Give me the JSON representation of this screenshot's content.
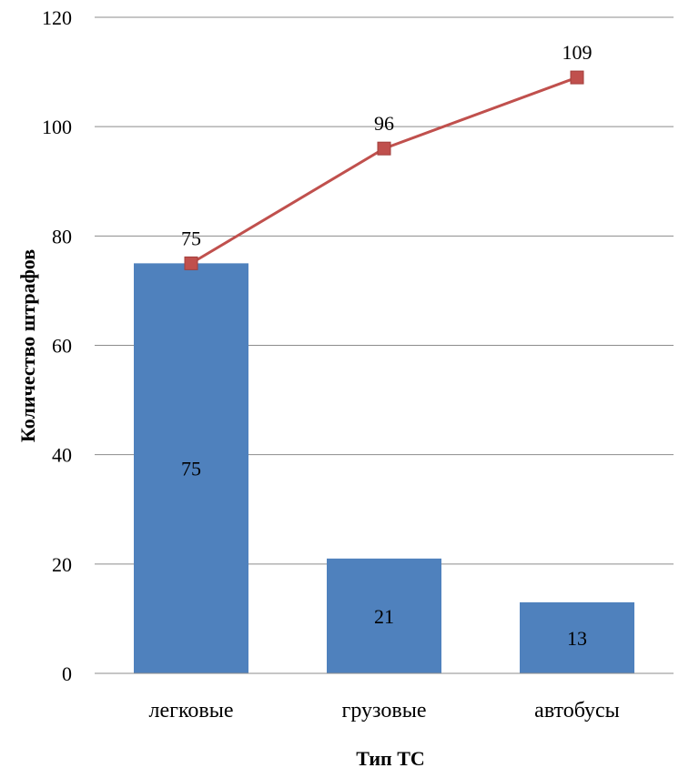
{
  "chart_data": {
    "type": "bar",
    "categories": [
      "легковые",
      "грузовые",
      "автобусы"
    ],
    "series": [
      {
        "type": "bar",
        "values": [
          75,
          21,
          13
        ],
        "color": "#4F81BD"
      },
      {
        "type": "line",
        "values": [
          75,
          96,
          109
        ],
        "color": "#C0504D",
        "marker": "square"
      }
    ],
    "xlabel": "Тип ТС",
    "ylabel": "Количество штрафов",
    "ylim": [
      0,
      120
    ],
    "yticks": [
      0,
      20,
      40,
      60,
      80,
      100,
      120
    ],
    "grid": true,
    "legend": "none"
  }
}
